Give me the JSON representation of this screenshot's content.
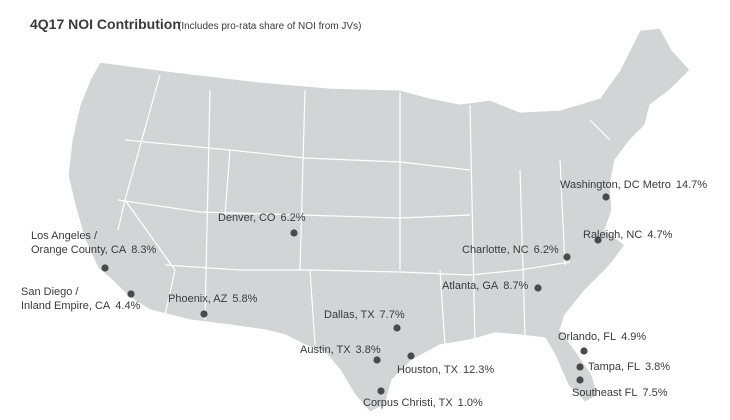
{
  "header": {
    "title": "4Q17 NOI Contribution",
    "subtitle": "(Includes pro-rata share of NOI from JVs)"
  },
  "markets": [
    {
      "name_lines": [
        "Washington, DC Metro"
      ],
      "share": "14.7%"
    },
    {
      "name_lines": [
        "Raleigh, NC"
      ],
      "share": "4.7%"
    },
    {
      "name_lines": [
        "Charlotte, NC"
      ],
      "share": "6.2%"
    },
    {
      "name_lines": [
        "Atlanta, GA"
      ],
      "share": "8.7%"
    },
    {
      "name_lines": [
        "Orlando, FL"
      ],
      "share": "4.9%"
    },
    {
      "name_lines": [
        "Tampa, FL"
      ],
      "share": "3.8%"
    },
    {
      "name_lines": [
        "Southeast FL"
      ],
      "share": "7.5%"
    },
    {
      "name_lines": [
        "Houston, TX"
      ],
      "share": "12.3%"
    },
    {
      "name_lines": [
        "Austin, TX"
      ],
      "share": "3.8%"
    },
    {
      "name_lines": [
        "Dallas, TX"
      ],
      "share": "7.7%"
    },
    {
      "name_lines": [
        "Corpus Christi, TX"
      ],
      "share": "1.0%"
    },
    {
      "name_lines": [
        "Denver, CO"
      ],
      "share": "6.2%"
    },
    {
      "name_lines": [
        "Phoenix, AZ"
      ],
      "share": "5.8%"
    },
    {
      "name_lines": [
        "Los Angeles /",
        "Orange County, CA"
      ],
      "share": "8.3%"
    },
    {
      "name_lines": [
        "San Diego /",
        "Inland Empire, CA"
      ],
      "share": "4.4%"
    }
  ]
}
